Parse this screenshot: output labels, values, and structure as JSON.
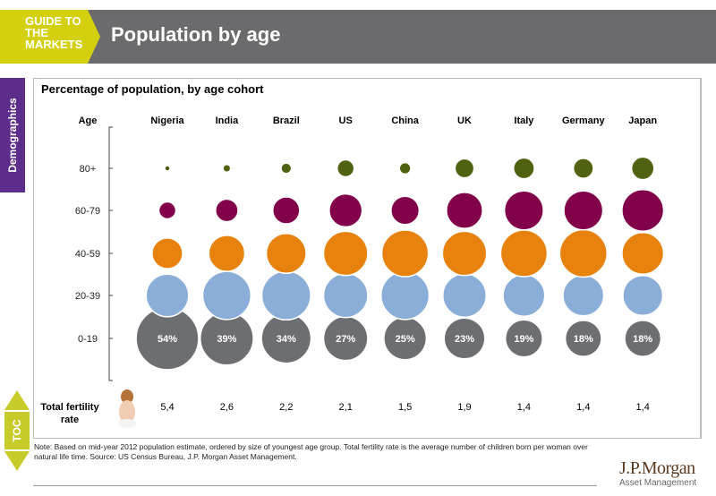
{
  "header": {
    "brand": "GUIDE TO THE MARKETS",
    "title": "Population by age"
  },
  "side_tab": "Demographics",
  "toc": "TOC",
  "colors": {
    "80+": "#4f6212",
    "60-79": "#82004a",
    "40-59": "#e8820e",
    "20-39": "#8aaed8",
    "0-19": "#6d6e71",
    "header": "#6b6b6d",
    "brand": "#d4d010",
    "tab": "#5c2d8a"
  },
  "chart_data": {
    "type": "bubble-grid",
    "title": "Percentage of population, by age cohort",
    "row_header": "Age",
    "categories": [
      "Nigeria",
      "India",
      "Brazil",
      "US",
      "China",
      "UK",
      "Italy",
      "Germany",
      "Japan"
    ],
    "age_groups": [
      "80+",
      "60-79",
      "40-59",
      "20-39",
      "0-19"
    ],
    "series": [
      {
        "name": "80+",
        "values": [
          0.4,
          0.8,
          1.5,
          4,
          1.8,
          5,
          6,
          5.5,
          7
        ]
      },
      {
        "name": "60-79",
        "values": [
          4,
          7,
          10,
          15,
          11,
          18,
          21,
          21,
          24
        ]
      },
      {
        "name": "40-59",
        "values": [
          13,
          18,
          22,
          27,
          30,
          27,
          30,
          31,
          24
        ]
      },
      {
        "name": "20-39",
        "values": [
          25,
          32,
          33,
          27,
          32,
          26,
          24,
          23,
          22
        ]
      },
      {
        "name": "0-19",
        "values": [
          54,
          39,
          34,
          27,
          25,
          23,
          19,
          18,
          18
        ],
        "labels": [
          "54%",
          "39%",
          "34%",
          "27%",
          "25%",
          "23%",
          "19%",
          "18%",
          "18%"
        ]
      }
    ],
    "fertility_label": "Total fertility rate",
    "fertility": [
      "5,4",
      "2,6",
      "2,2",
      "2,1",
      "1,5",
      "1,9",
      "1,4",
      "1,4",
      "1,4"
    ]
  },
  "note": "Note: Based on mid-year 2012 population estimate, ordered by size of youngest age group. Total fertility rate is the average number of children born per woman over natural life time. Source: US Census Bureau, J.P. Morgan Asset Management.",
  "logo": {
    "name": "J.P.Morgan",
    "sub": "Asset Management"
  }
}
